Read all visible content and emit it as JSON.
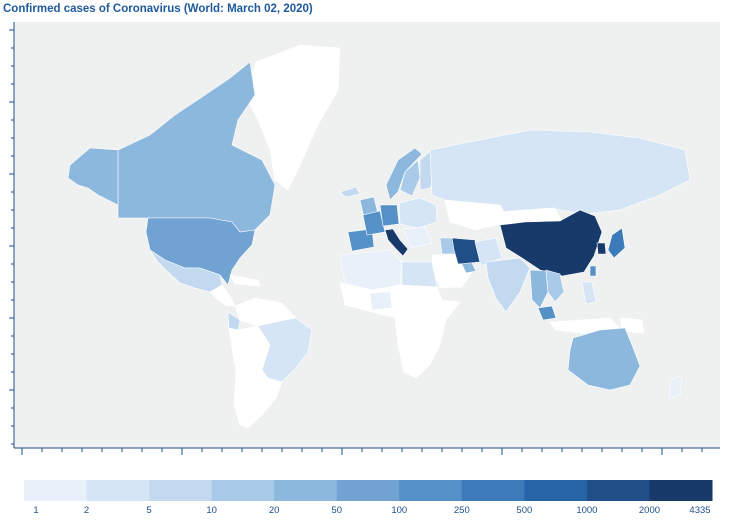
{
  "title": "Confirmed cases of Coronavirus (World: March 02, 2020)",
  "colors": {
    "ocean": "#eff1f1",
    "no_data": "#ffffff",
    "axis": "#1f4f86",
    "title": "#1f5a9c"
  },
  "legend": {
    "breaks": [
      "1",
      "2",
      "5",
      "10",
      "20",
      "50",
      "100",
      "250",
      "500",
      "1000",
      "2000",
      "4335"
    ],
    "bin_colors": [
      "#e8f0fa",
      "#d6e5f5",
      "#c2d9ef",
      "#a9cae8",
      "#8db8de",
      "#71a3d2",
      "#5590c6",
      "#3c7aba",
      "#2764a7",
      "#1f4f86",
      "#173a6a"
    ]
  },
  "regions": [
    {
      "name": "Greenland",
      "cases": null
    },
    {
      "name": "Canada",
      "cases": 27
    },
    {
      "name": "Alaska",
      "cases": 30
    },
    {
      "name": "United States",
      "cases": 75
    },
    {
      "name": "Mexico",
      "cases": 5
    },
    {
      "name": "Central America",
      "cases": null
    },
    {
      "name": "Caribbean",
      "cases": null
    },
    {
      "name": "Colombia/Venezuela",
      "cases": null
    },
    {
      "name": "Ecuador",
      "cases": 6
    },
    {
      "name": "Peru/Bolivia/Chile",
      "cases": null
    },
    {
      "name": "Brazil",
      "cases": 2
    },
    {
      "name": "Argentina",
      "cases": null
    },
    {
      "name": "Iceland",
      "cases": 6
    },
    {
      "name": "Norway",
      "cases": 25
    },
    {
      "name": "Sweden",
      "cases": 15
    },
    {
      "name": "Finland",
      "cases": 6
    },
    {
      "name": "United Kingdom",
      "cases": 40
    },
    {
      "name": "Spain",
      "cases": 120
    },
    {
      "name": "France",
      "cases": 191
    },
    {
      "name": "Germany",
      "cases": 150
    },
    {
      "name": "Italy",
      "cases": 2036
    },
    {
      "name": "Eastern Europe",
      "cases": 3
    },
    {
      "name": "Balkans",
      "cases": 1
    },
    {
      "name": "Russia",
      "cases": 3
    },
    {
      "name": "Kazakhstan",
      "cases": null
    },
    {
      "name": "Northwest Africa",
      "cases": 1
    },
    {
      "name": "Egypt",
      "cases": 2
    },
    {
      "name": "Sub-Saharan Africa",
      "cases": null
    },
    {
      "name": "Nigeria",
      "cases": 1
    },
    {
      "name": "Saudi Arabia",
      "cases": null
    },
    {
      "name": "Gulf States",
      "cases": 21
    },
    {
      "name": "Iraq",
      "cases": 19
    },
    {
      "name": "Iran",
      "cases": 1501
    },
    {
      "name": "Afghanistan/Pakistan",
      "cases": 4
    },
    {
      "name": "India",
      "cases": 5
    },
    {
      "name": "Mongolia",
      "cases": null
    },
    {
      "name": "China",
      "cases": 4335
    },
    {
      "name": "Japan",
      "cases": 254
    },
    {
      "name": "South Korea",
      "cases": 4335
    },
    {
      "name": "Taiwan/Hong Kong",
      "cases": 100
    },
    {
      "name": "Thailand",
      "cases": 43
    },
    {
      "name": "Vietnam/Cambodia",
      "cases": 16
    },
    {
      "name": "Malaysia/Singapore",
      "cases": 108
    },
    {
      "name": "Philippines",
      "cases": 3
    },
    {
      "name": "Indonesia",
      "cases": null
    },
    {
      "name": "Papua New Guinea",
      "cases": null
    },
    {
      "name": "Australia",
      "cases": 30
    },
    {
      "name": "New Zealand",
      "cases": 1
    }
  ]
}
